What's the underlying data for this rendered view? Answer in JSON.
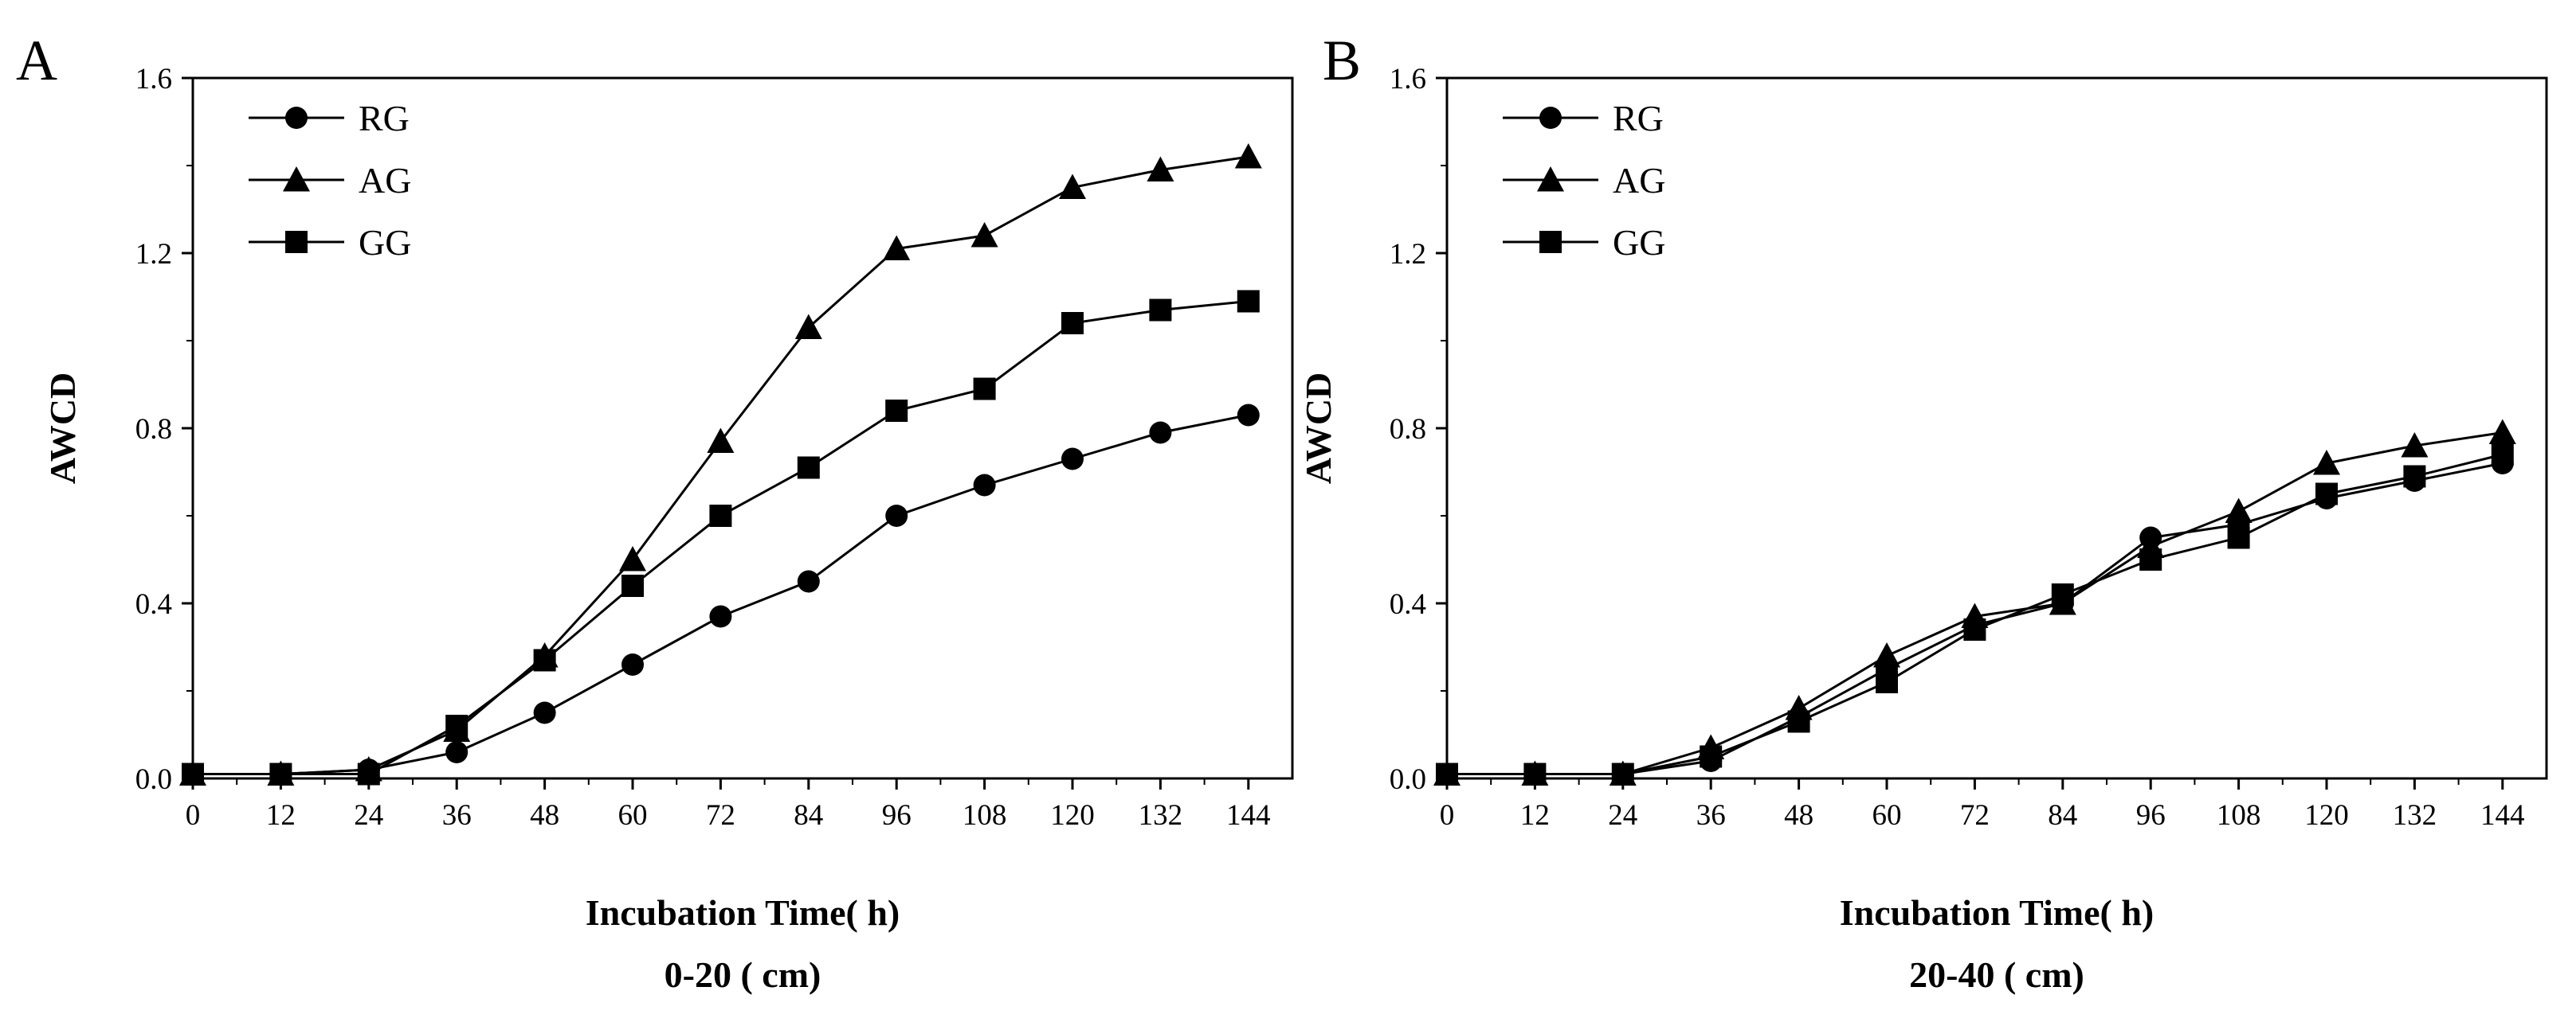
{
  "chart_data": [
    {
      "type": "line",
      "panel_label": "A",
      "xlabel": "Incubation Time( h)",
      "subtitle": "0-20 ( cm)",
      "ylabel": "AWCD",
      "x": [
        0,
        12,
        24,
        36,
        48,
        60,
        72,
        84,
        96,
        108,
        120,
        132,
        144
      ],
      "x_ticks": [
        "0",
        "12",
        "24",
        "36",
        "48",
        "60",
        "72",
        "84",
        "96",
        "108",
        "120",
        "132",
        "144"
      ],
      "y_ticks": [
        "0.0",
        "0.4",
        "0.8",
        "1.2",
        "1.6"
      ],
      "xlim": [
        0,
        150
      ],
      "ylim": [
        0,
        1.6
      ],
      "legend_position": "top-left",
      "series": [
        {
          "name": "RG",
          "marker": "circle",
          "values": [
            0.01,
            0.01,
            0.02,
            0.06,
            0.15,
            0.26,
            0.37,
            0.45,
            0.6,
            0.67,
            0.73,
            0.79,
            0.83
          ]
        },
        {
          "name": "AG",
          "marker": "triangle",
          "values": [
            0.01,
            0.01,
            0.02,
            0.11,
            0.28,
            0.5,
            0.77,
            1.03,
            1.21,
            1.24,
            1.35,
            1.39,
            1.42
          ]
        },
        {
          "name": "GG",
          "marker": "square",
          "values": [
            0.01,
            0.01,
            0.01,
            0.12,
            0.27,
            0.44,
            0.6,
            0.71,
            0.84,
            0.89,
            1.04,
            1.07,
            1.09
          ]
        }
      ]
    },
    {
      "type": "line",
      "panel_label": "B",
      "xlabel": "Incubation Time( h)",
      "subtitle": "20-40 ( cm)",
      "ylabel": "AWCD",
      "x": [
        0,
        12,
        24,
        36,
        48,
        60,
        72,
        84,
        96,
        108,
        120,
        132,
        144
      ],
      "x_ticks": [
        "0",
        "12",
        "24",
        "36",
        "48",
        "60",
        "72",
        "84",
        "96",
        "108",
        "120",
        "132",
        "144"
      ],
      "y_ticks": [
        "0.0",
        "0.4",
        "0.8",
        "1.2",
        "1.6"
      ],
      "xlim": [
        0,
        150
      ],
      "ylim": [
        0,
        1.6
      ],
      "legend_position": "top-left",
      "series": [
        {
          "name": "RG",
          "marker": "circle",
          "values": [
            0.01,
            0.01,
            0.01,
            0.04,
            0.14,
            0.25,
            0.35,
            0.4,
            0.55,
            0.58,
            0.64,
            0.68,
            0.72
          ]
        },
        {
          "name": "AG",
          "marker": "triangle",
          "values": [
            0.01,
            0.01,
            0.01,
            0.07,
            0.16,
            0.28,
            0.37,
            0.4,
            0.53,
            0.61,
            0.72,
            0.76,
            0.79
          ]
        },
        {
          "name": "GG",
          "marker": "square",
          "values": [
            0.01,
            0.01,
            0.01,
            0.05,
            0.13,
            0.22,
            0.34,
            0.42,
            0.5,
            0.55,
            0.65,
            0.69,
            0.74
          ]
        }
      ]
    }
  ]
}
